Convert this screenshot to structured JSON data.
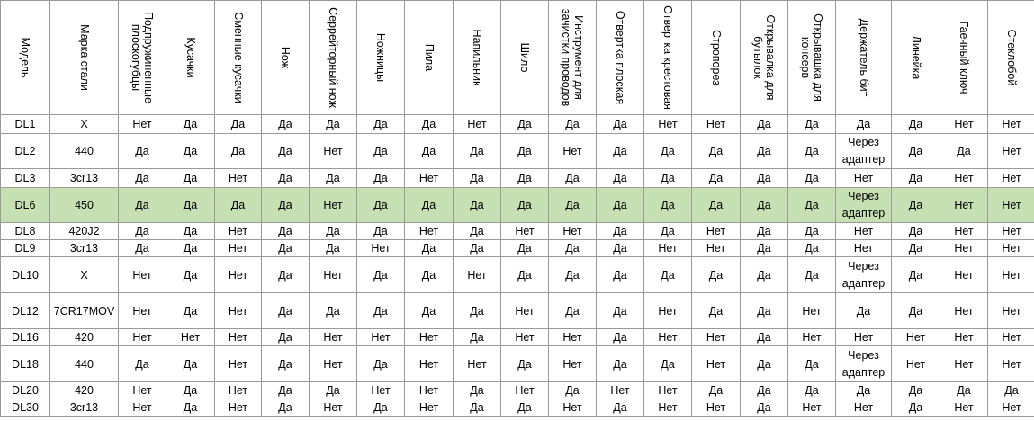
{
  "headers": [
    "Модель",
    "Марка стали",
    "Подпружиненные плоскогубцы",
    "Кусачки",
    "Сменные кусачки",
    "Нож",
    "Серрейторный нож",
    "Ножницы",
    "Пила",
    "Напильник",
    "Шило",
    "Инструмент для зачистки проводов",
    "Отвертка плоская",
    "Отвертка крестовая",
    "Стропорез",
    "Открывалка для бутылок",
    "Открывашка для консерв",
    "Держатель бит",
    "Линейка",
    "Гаечный ключ",
    "Стеклобой"
  ],
  "rows": [
    {
      "cells": [
        "DL1",
        "X",
        "Нет",
        "Да",
        "Да",
        "Да",
        "Да",
        "Да",
        "Да",
        "Нет",
        "Да",
        "Да",
        "Да",
        "Нет",
        "Нет",
        "Да",
        "Да",
        "Да",
        "Да",
        "Нет",
        "Нет"
      ]
    },
    {
      "cells": [
        "DL2",
        "440",
        "Да",
        "Да",
        "Да",
        "Да",
        "Нет",
        "Да",
        "Да",
        "Да",
        "Да",
        "Нет",
        "Да",
        "Да",
        "Да",
        "Да",
        "Да",
        "Через адаптер",
        "Да",
        "Да",
        "Нет"
      ]
    },
    {
      "cells": [
        "DL3",
        "3cr13",
        "Да",
        "Да",
        "Нет",
        "Да",
        "Да",
        "Да",
        "Нет",
        "Да",
        "Да",
        "Да",
        "Да",
        "Да",
        "Да",
        "Да",
        "Да",
        "Нет",
        "Да",
        "Нет",
        "Нет"
      ]
    },
    {
      "cells": [
        "DL6",
        "450",
        "Да",
        "Да",
        "Да",
        "Да",
        "Нет",
        "Да",
        "Да",
        "Да",
        "Да",
        "Да",
        "Да",
        "Да",
        "Да",
        "Да",
        "Да",
        "Через адаптер",
        "Да",
        "Нет",
        "Нет"
      ],
      "highlight": "true"
    },
    {
      "cells": [
        "DL8",
        "420J2",
        "Да",
        "Да",
        "Нет",
        "Да",
        "Да",
        "Да",
        "Нет",
        "Да",
        "Нет",
        "Нет",
        "Да",
        "Да",
        "Нет",
        "Да",
        "Да",
        "Нет",
        "Да",
        "Нет",
        "Нет"
      ]
    },
    {
      "cells": [
        "DL9",
        "3cr13",
        "Да",
        "Да",
        "Нет",
        "Да",
        "Да",
        "Нет",
        "Да",
        "Да",
        "Да",
        "Да",
        "Да",
        "Нет",
        "Нет",
        "Да",
        "Да",
        "Нет",
        "Да",
        "Нет",
        "Нет"
      ]
    },
    {
      "cells": [
        "DL10",
        "X",
        "Нет",
        "Да",
        "Нет",
        "Да",
        "Нет",
        "Да",
        "Да",
        "Нет",
        "Да",
        "Да",
        "Да",
        "Да",
        "Да",
        "Да",
        "Да",
        "Через адаптер",
        "Да",
        "Нет",
        "Нет"
      ]
    },
    {
      "cells": [
        "DL12",
        "7CR17MOV",
        "Нет",
        "Да",
        "Нет",
        "Да",
        "Да",
        "Да",
        "Да",
        "Да",
        "Нет",
        "Да",
        "Да",
        "Нет",
        "Да",
        "Да",
        "Нет",
        "Да",
        "Да",
        "Нет",
        "Нет"
      ]
    },
    {
      "cells": [
        "DL16",
        "420",
        "Нет",
        "Нет",
        "Нет",
        "Да",
        "Нет",
        "Нет",
        "Нет",
        "Да",
        "Нет",
        "Нет",
        "Да",
        "Нет",
        "Нет",
        "Да",
        "Нет",
        "Нет",
        "Нет",
        "Нет",
        "Нет"
      ]
    },
    {
      "cells": [
        "DL18",
        "440",
        "Да",
        "Да",
        "Нет",
        "Да",
        "Нет",
        "Да",
        "Нет",
        "Нет",
        "Да",
        "Нет",
        "Да",
        "Да",
        "Нет",
        "Да",
        "Да",
        "Через адаптер",
        "Нет",
        "Нет",
        "Нет"
      ]
    },
    {
      "cells": [
        "DL20",
        "420",
        "Нет",
        "Да",
        "Нет",
        "Да",
        "Да",
        "Нет",
        "Нет",
        "Да",
        "Нет",
        "Да",
        "Нет",
        "Нет",
        "Да",
        "Да",
        "Да",
        "Да",
        "Да",
        "Да",
        "Да"
      ]
    },
    {
      "cells": [
        "DL30",
        "3cr13",
        "Нет",
        "Да",
        "Нет",
        "Да",
        "Нет",
        "Да",
        "Нет",
        "Да",
        "Да",
        "Нет",
        "Да",
        "Нет",
        "Нет",
        "Да",
        "Нет",
        "Нет",
        "Да",
        "Нет",
        "Нет"
      ]
    }
  ]
}
